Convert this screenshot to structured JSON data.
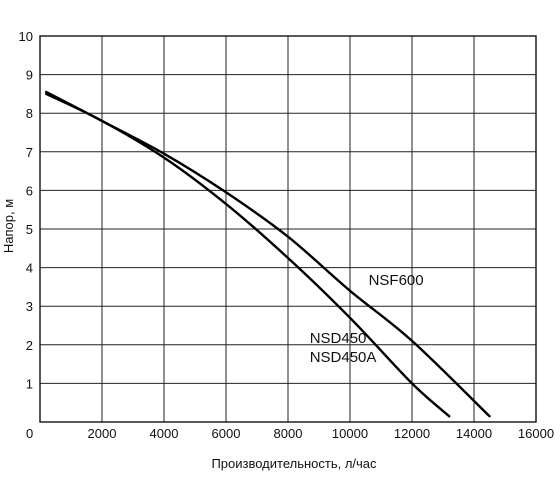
{
  "chart_data": {
    "type": "line",
    "title": "",
    "xlabel": "Производительность, л/час",
    "ylabel": "Напор, м",
    "xlim": [
      0,
      16000
    ],
    "ylim": [
      0,
      10
    ],
    "x_ticks": [
      "0",
      "2000",
      "4000",
      "6000",
      "8000",
      "10000",
      "12000",
      "14000",
      "16000"
    ],
    "y_ticks": [
      "1",
      "2",
      "3",
      "4",
      "5",
      "6",
      "7",
      "8",
      "9",
      "10"
    ],
    "grid": true,
    "series": [
      {
        "name": "NSF600",
        "label_lines": [
          "NSF600"
        ],
        "label_anchor": [
          10600,
          3.55
        ],
        "x": [
          200,
          2000,
          4000,
          6000,
          8000,
          10000,
          12000,
          14500
        ],
        "y": [
          8.55,
          7.8,
          6.95,
          5.95,
          4.8,
          3.4,
          2.1,
          0.15
        ]
      },
      {
        "name": "NSD450 / NSD450A",
        "label_lines": [
          "NSD450",
          "NSD450A"
        ],
        "label_anchor": [
          8700,
          2.05
        ],
        "x": [
          200,
          2000,
          4000,
          6000,
          8000,
          10000,
          12000,
          13200
        ],
        "y": [
          8.5,
          7.8,
          6.85,
          5.65,
          4.25,
          2.7,
          1.0,
          0.15
        ]
      }
    ]
  }
}
